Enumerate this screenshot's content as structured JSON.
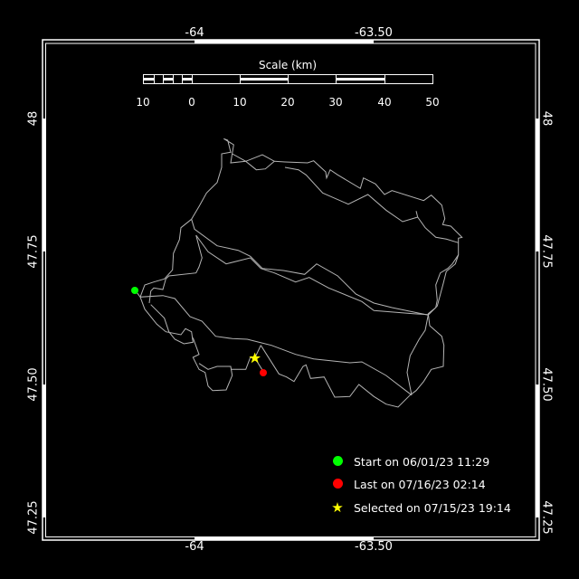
{
  "axes": {
    "lon_ticks": [
      "-64",
      "-63.50"
    ],
    "lat_ticks": [
      "48",
      "47.75",
      "47.50",
      "47.25"
    ]
  },
  "scale_bar": {
    "title": "Scale (km)",
    "labels": [
      "10",
      "0",
      "10",
      "20",
      "30",
      "40",
      "50"
    ]
  },
  "legend": [
    {
      "label": "Start on 06/01/23 11:29",
      "marker": "circle",
      "color": "#00ff00"
    },
    {
      "label": "Last on 07/16/23 02:14",
      "marker": "circle",
      "color": "#ff0000"
    },
    {
      "label": "Selected on 07/15/23 19:14",
      "marker": "star",
      "color": "#ffff00"
    }
  ],
  "colors": {
    "background": "#000000",
    "frame": "#ffffff",
    "track": "#b4b4b4"
  }
}
